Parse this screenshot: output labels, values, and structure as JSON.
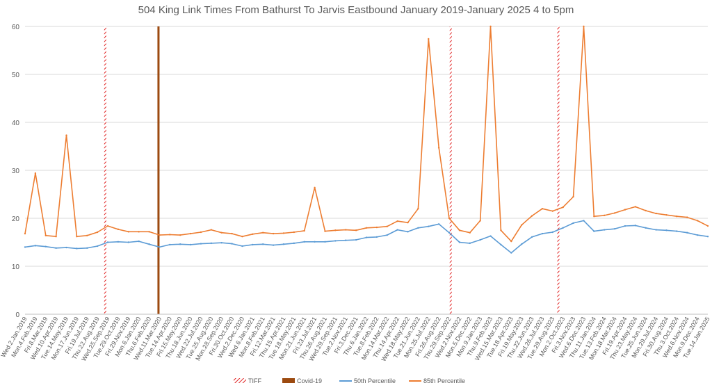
{
  "chart_data": {
    "type": "line",
    "title": "504 King Link Times From Bathurst To Jarvis Eastbound January 2019-January 2025 4 to 5pm",
    "xlabel": "",
    "ylabel": "",
    "ylim": [
      0,
      60
    ],
    "y_ticks": [
      "0",
      "10",
      "20",
      "30",
      "40",
      "50",
      "60"
    ],
    "grid": true,
    "legend_position": "bottom",
    "x_tick_labels": [
      "Wed.2.Jan.2019",
      "Mon.4.Feb.2019",
      "Fri.8.Mar.2019",
      "Wed.10.Apr.2019",
      "Tue.14.May.2019",
      "Mon.17.Jun.2019",
      "Fri.19.Jul.2019",
      "Thu.22.Aug.2019",
      "Wed.25.Sep.2019",
      "Tue.29.Oct.2019",
      "Fri.29.Nov.2019",
      "Mon.6.Jan.2020",
      "Thu.6.Feb.2020",
      "Wed.11.Mar.2020",
      "Tue.14.Apr.2020",
      "Fri.15.May.2020",
      "Thu.18.Jun.2020",
      "Wed.22.Jul.2020",
      "Tue.25.Aug.2020",
      "Mon.28.Sep.2020",
      "Fri.30.Oct.2020",
      "Wed.2.Dec.2020",
      "Wed.6.Jan.2021",
      "Mon.8.Feb.2021",
      "Fri.12.Mar.2021",
      "Thu.15.Apr.2021",
      "Tue.18.May.2021",
      "Mon.21.Jun.2021",
      "Fri.23.Jul.2021",
      "Thu.26.Aug.2021",
      "Wed.29.Sep.2021",
      "Tue.2.Nov.2021",
      "Fri.3.Dec.2021",
      "Thu.6.Jan.2022",
      "Tue.8.Feb.2022",
      "Mon.14.Mar.2022",
      "Thu.14.Apr.2022",
      "Wed.18.May.2022",
      "Tue.21.Jun.2022",
      "Mon.25.Jul.2022",
      "Fri.26.Aug.2022",
      "Thu.29.Sep.2022",
      "Wed.2.Nov.2022",
      "Mon.5.Dec.2022",
      "Mon.9.Jan.2023",
      "Thu.9.Feb.2023",
      "Wed.15.Mar.2023",
      "Tue.18.Apr.2023",
      "Fri.19.May.2023",
      "Thu.22.Jun.2023",
      "Wed.26.Jul.2023",
      "Tue.29.Aug.2023",
      "Mon.2.Oct.2023",
      "Fri.3.Nov.2023",
      "Wed.6.Dec.2023",
      "Thu.11.Jan.2024",
      "Tue.13.Feb.2024",
      "Mon.18.Mar.2024",
      "Fri.19.Apr.2024",
      "Thu.23.May.2024",
      "Tue.25.Jun.2024",
      "Mon.29.Jul.2024",
      "Fri.30.Aug.2024",
      "Thu.3.Oct.2024",
      "Wed.6.Nov.2024",
      "Mon.9.Dec.2024",
      "Tue.14.Jan.2025"
    ],
    "markers": [
      {
        "name": "TIFF",
        "x_index": 7.75,
        "color": "#e02020"
      },
      {
        "name": "TIFF",
        "x_index": 41.15,
        "color": "#e02020"
      },
      {
        "name": "TIFF",
        "x_index": 51.55,
        "color": "#e02020"
      },
      {
        "name": "Covid-19",
        "x_index": 12.9,
        "color": "#9c4a10"
      }
    ],
    "series": [
      {
        "name": "50th Percentile",
        "color": "#5b9bd5",
        "values": [
          14.0,
          14.3,
          14.1,
          13.8,
          13.9,
          13.7,
          13.8,
          14.2,
          15.0,
          15.1,
          15.0,
          15.2,
          14.6,
          14.0,
          14.5,
          14.6,
          14.5,
          14.7,
          14.8,
          14.9,
          14.7,
          14.2,
          14.5,
          14.6,
          14.4,
          14.6,
          14.8,
          15.1,
          15.1,
          15.1,
          15.3,
          15.4,
          15.5,
          16.0,
          16.1,
          16.5,
          17.6,
          17.2,
          18.0,
          18.3,
          18.8,
          17.0,
          15.0,
          14.8,
          15.5,
          16.3,
          14.5,
          12.8,
          14.6,
          16.1,
          16.8,
          17.1,
          18.0,
          19.0,
          19.5,
          17.3,
          17.6,
          17.8,
          18.4,
          18.5,
          18.0,
          17.6,
          17.5,
          17.3,
          17.0,
          16.5,
          16.2
        ]
      },
      {
        "name": "85th Percentile",
        "color": "#ed7d31",
        "values": [
          16.8,
          29.4,
          16.4,
          16.2,
          37.3,
          16.2,
          16.4,
          17.1,
          18.4,
          17.7,
          17.2,
          17.2,
          17.2,
          16.5,
          16.6,
          16.5,
          16.8,
          17.1,
          17.6,
          17.0,
          16.8,
          16.2,
          16.7,
          17.0,
          16.8,
          16.9,
          17.1,
          17.4,
          26.4,
          17.3,
          17.5,
          17.6,
          17.5,
          18.0,
          18.1,
          18.3,
          19.4,
          19.1,
          22.0,
          57.4,
          34.7,
          20.0,
          17.5,
          17.0,
          19.5,
          60.0,
          17.5,
          15.2,
          18.6,
          20.5,
          22.0,
          21.5,
          22.3,
          24.5,
          60.0,
          20.4,
          20.6,
          21.1,
          21.8,
          22.4,
          21.6,
          21.0,
          20.7,
          20.4,
          20.2,
          19.5,
          18.4
        ]
      }
    ],
    "legend": [
      {
        "label": "TIFF",
        "color": "#e02020",
        "style": "hatched"
      },
      {
        "label": "Covid-19",
        "color": "#9c4a10",
        "style": "solid"
      },
      {
        "label": "50th Percentile",
        "color": "#5b9bd5",
        "style": "line"
      },
      {
        "label": "85th Percentile",
        "color": "#ed7d31",
        "style": "line"
      }
    ]
  }
}
